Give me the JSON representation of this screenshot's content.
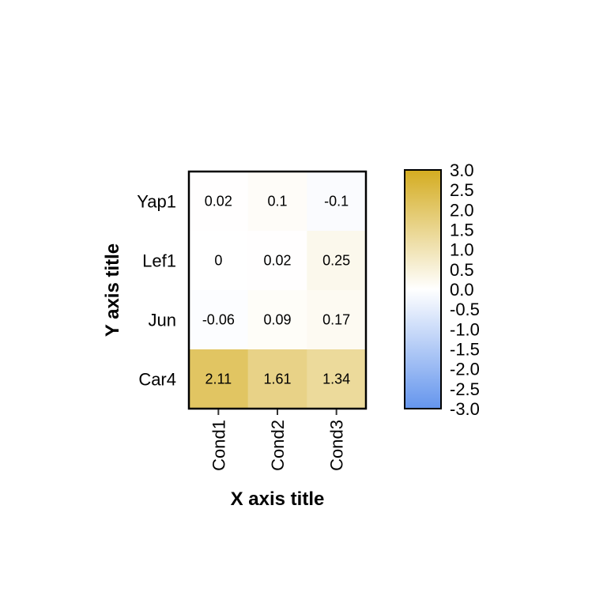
{
  "chart_data": {
    "type": "heatmap",
    "title": "",
    "xlabel": "X axis title",
    "ylabel": "Y axis title",
    "columns": [
      "Cond1",
      "Cond2",
      "Cond3"
    ],
    "rows": [
      "Yap1",
      "Lef1",
      "Jun",
      "Car4"
    ],
    "values": [
      [
        0.02,
        0.1,
        -0.1
      ],
      [
        0,
        0.02,
        0.25
      ],
      [
        -0.06,
        0.09,
        0.17
      ],
      [
        2.11,
        1.61,
        1.34
      ]
    ],
    "value_labels": [
      [
        "0.02",
        "0.1",
        "-0.1"
      ],
      [
        "0",
        "0.02",
        "0.25"
      ],
      [
        "-0.06",
        "0.09",
        "0.17"
      ],
      [
        "2.11",
        "1.61",
        "1.34"
      ]
    ],
    "colorbar": {
      "range": [
        -3.0,
        3.0
      ],
      "ticks": [
        3.0,
        2.5,
        2.0,
        1.5,
        1.0,
        0.5,
        0.0,
        -0.5,
        -1.0,
        -1.5,
        -2.0,
        -2.5,
        -3.0
      ],
      "tick_labels": [
        "3.0",
        "2.5",
        "2.0",
        "1.5",
        "1.0",
        "0.5",
        "0.0",
        "-0.5",
        "-1.0",
        "-1.5",
        "-2.0",
        "-2.5",
        "-3.0"
      ],
      "color_low": "#6495ed",
      "color_mid": "#ffffff",
      "color_high": "#d4ac20"
    },
    "legend_position": "right",
    "grid": false
  }
}
